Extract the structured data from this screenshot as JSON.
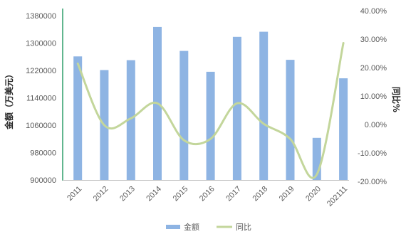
{
  "chart_data": {
    "type": "bar",
    "categories": [
      "2011",
      "2012",
      "2013",
      "2014",
      "2015",
      "2016",
      "2017",
      "2018",
      "2019",
      "2020",
      "202111"
    ],
    "series": [
      {
        "name": "金额",
        "type": "bar",
        "axis": "left",
        "color": "#8EB4E3",
        "values": [
          1261000,
          1221000,
          1250000,
          1347000,
          1277000,
          1216000,
          1318000,
          1333000,
          1251000,
          1023000,
          1197000
        ]
      },
      {
        "name": "同比",
        "type": "line",
        "axis": "right",
        "color": "#C3D69B",
        "values": [
          22.5,
          0.0,
          2.5,
          8.0,
          -5.5,
          -5.0,
          8.0,
          0.5,
          -5.0,
          -18.0,
          30.0
        ]
      }
    ],
    "ylabel_left": "金额（万美元）",
    "ylabel_right": "同比%",
    "yleft_ticks": [
      "1380000",
      "1300000",
      "1220000",
      "1140000",
      "1060000",
      "980000",
      "900000"
    ],
    "ylim_left": [
      900000,
      1380000
    ],
    "yright_ticks": [
      "40.00%",
      "30.00%",
      "20.00%",
      "10.00%",
      "0.00%",
      "-10.00%",
      "-20.00%"
    ],
    "ylim_right": [
      -20,
      40
    ],
    "grid": false,
    "legend_position": "bottom",
    "legend": [
      {
        "label": "金额",
        "kind": "bar"
      },
      {
        "label": "同比",
        "kind": "line"
      }
    ]
  }
}
